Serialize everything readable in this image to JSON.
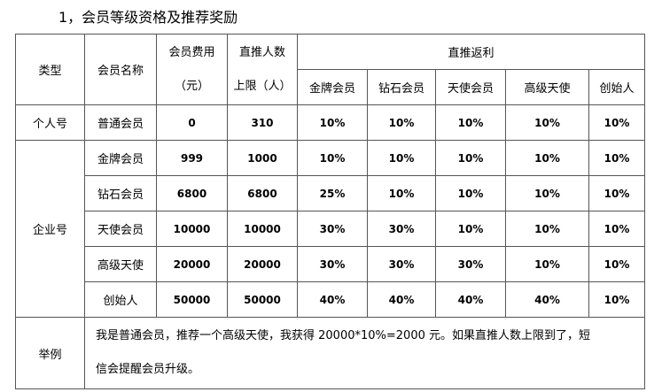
{
  "title": "1，会员等级资格及推荐奖励",
  "table": {
    "header": {
      "type": "类型",
      "name": "会员名称",
      "fee": [
        "会员费用",
        "（元）"
      ],
      "limit": [
        "直推人数",
        "上限（人）"
      ],
      "rebate": "直推返利",
      "rebate_levels": [
        "金牌会员",
        "钻石会员",
        "天使会员",
        "高级天使",
        "创始人"
      ]
    },
    "groups": [
      {
        "label": "个人号",
        "rows": [
          [
            "普通会员",
            "0",
            "310",
            "10%",
            "10%",
            "10%",
            "10%",
            "10%"
          ]
        ]
      },
      {
        "label": "企业号",
        "rows": [
          [
            "金牌会员",
            "999",
            "1000",
            "10%",
            "10%",
            "10%",
            "10%",
            "10%"
          ],
          [
            "钻石会员",
            "6800",
            "6800",
            "25%",
            "10%",
            "10%",
            "10%",
            "10%"
          ],
          [
            "天使会员",
            "10000",
            "10000",
            "30%",
            "30%",
            "10%",
            "10%",
            "10%"
          ],
          [
            "高级天使",
            "20000",
            "20000",
            "30%",
            "30%",
            "30%",
            "10%",
            "10%"
          ],
          [
            "创始人",
            "50000",
            "50000",
            "40%",
            "40%",
            "40%",
            "40%",
            "10%"
          ]
        ]
      }
    ],
    "example": {
      "label": "举例",
      "text": [
        "我是普通会员，推荐一个高级天使，我获得 20000*10%=2000 元。如果直推人数上限到了，短",
        "信会提醒会员升级。"
      ]
    }
  }
}
